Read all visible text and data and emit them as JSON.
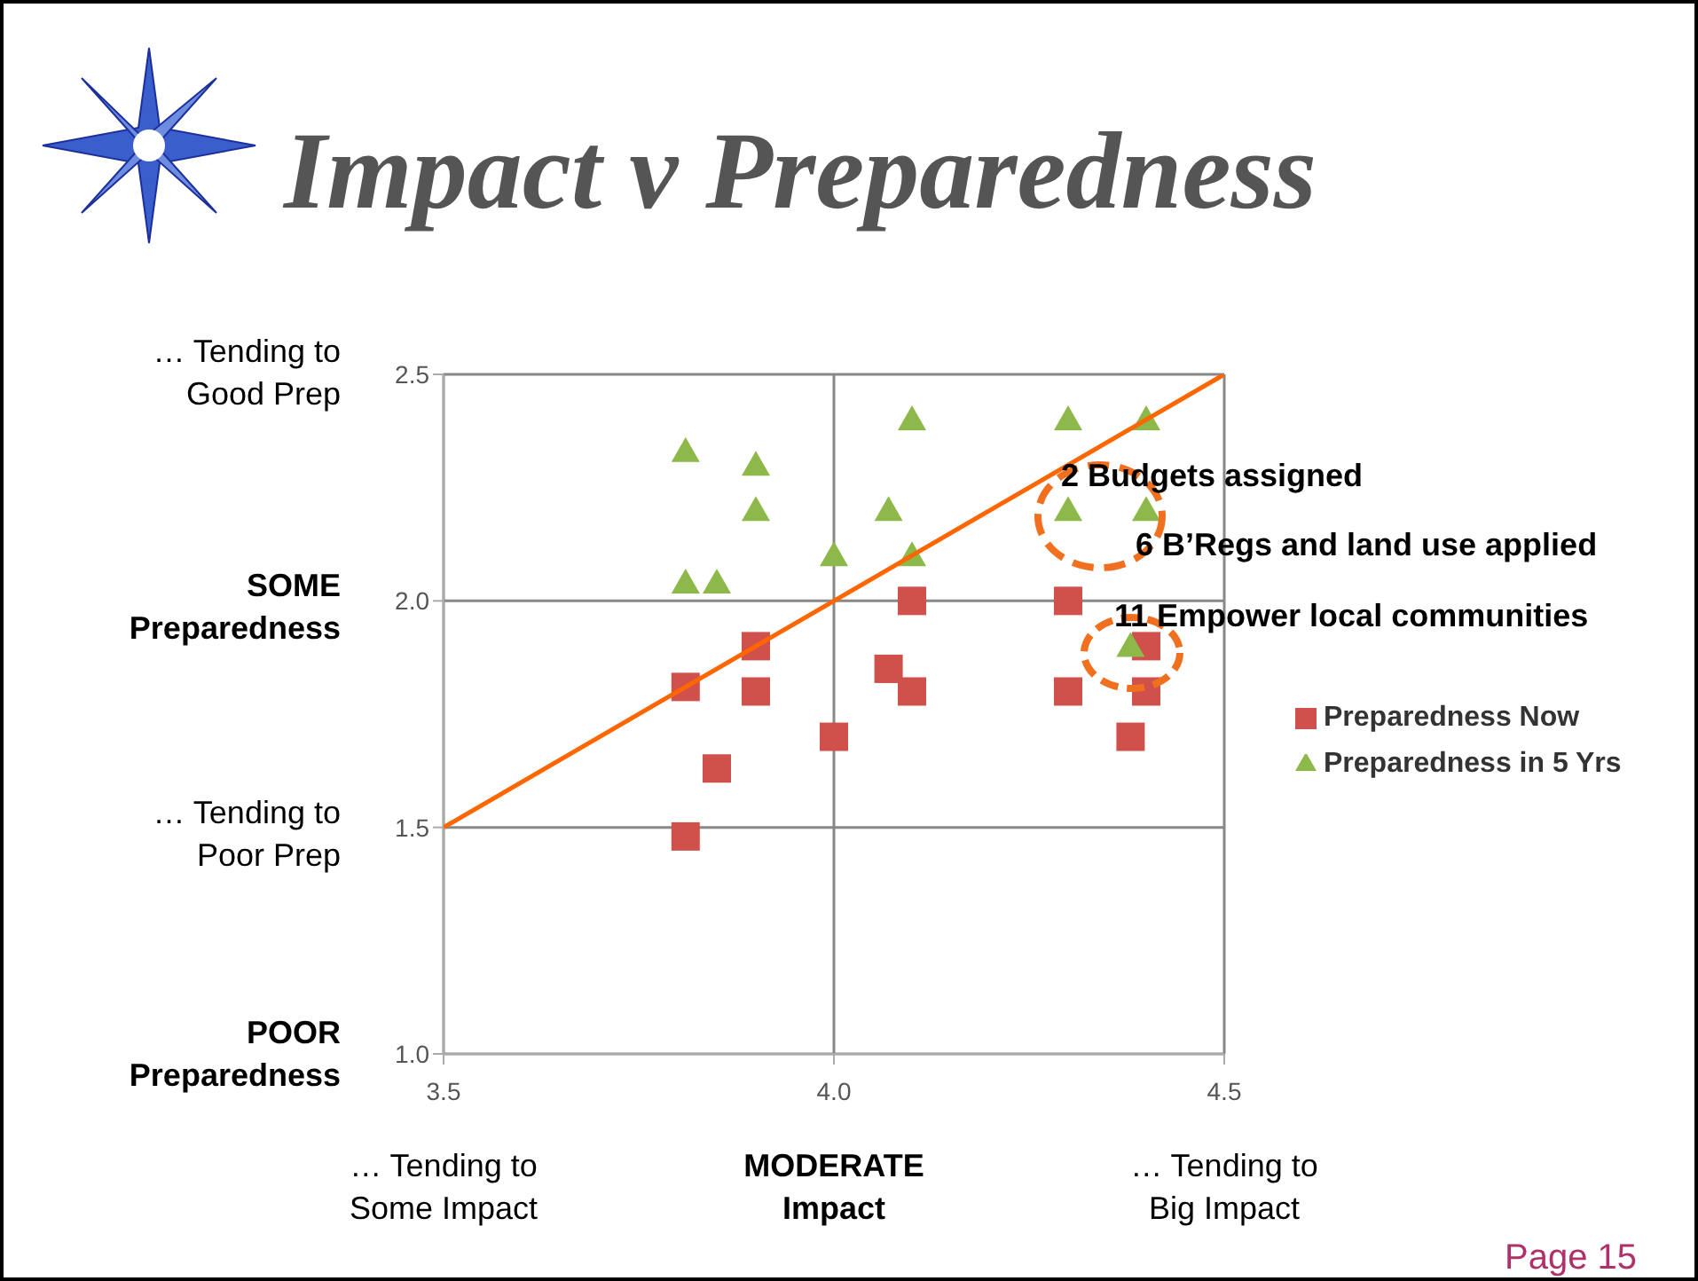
{
  "chart_data": {
    "type": "scatter",
    "title": "Impact v Preparedness",
    "xlim": [
      3.5,
      4.5
    ],
    "xticks": [
      3.5,
      {
        "value": 4.0,
        "label": "4.0"
      },
      4.5
    ],
    "ylim": [
      1.0,
      2.5
    ],
    "yticks": [
      {
        "value": 1.0,
        "label": "1.0"
      },
      1.5,
      {
        "value": 2.0,
        "label": "2.0"
      },
      2.5
    ],
    "grid": true,
    "legend": "right",
    "series": [
      {
        "name": "Preparedness Now",
        "color": "#d0504c",
        "marker": "square",
        "x": [
          3.81,
          3.85,
          3.81,
          3.9,
          3.9,
          4.0,
          4.1,
          4.07,
          4.1,
          4.3,
          4.3,
          4.4,
          4.4,
          4.38
        ],
        "values": [
          1.81,
          1.63,
          1.48,
          1.9,
          1.8,
          1.7,
          2.0,
          1.85,
          1.8,
          2.0,
          1.8,
          1.9,
          1.8,
          1.7
        ]
      },
      {
        "name": "Preparedness in 5 Yrs",
        "color": "#8db84a",
        "marker": "triangle",
        "x": [
          3.81,
          3.9,
          3.9,
          3.81,
          3.85,
          4.0,
          4.1,
          4.07,
          4.1,
          4.3,
          4.4,
          4.3,
          4.4,
          4.38
        ],
        "values": [
          2.33,
          2.3,
          2.2,
          2.04,
          2.04,
          2.1,
          2.4,
          2.2,
          2.1,
          2.4,
          2.4,
          2.2,
          2.2,
          1.9
        ]
      },
      {
        "type": "line",
        "color": "#ff6600",
        "x": [
          3.5,
          4.5
        ],
        "values": [
          1.5,
          2.5
        ]
      }
    ],
    "annotations": [
      "2 Budgets assigned",
      "6 B’Regs and land use applied",
      "11 Empower local communities",
      "… Tending to\nGood Prep",
      "SOME\nPreparedness",
      "… Tending to\nPoor Prep",
      "POOR\nPreparedness",
      "… Tending to\nSome Impact",
      "MODERATE\nImpact",
      "… Tending to\nBig Impact",
      "Page 15"
    ]
  }
}
